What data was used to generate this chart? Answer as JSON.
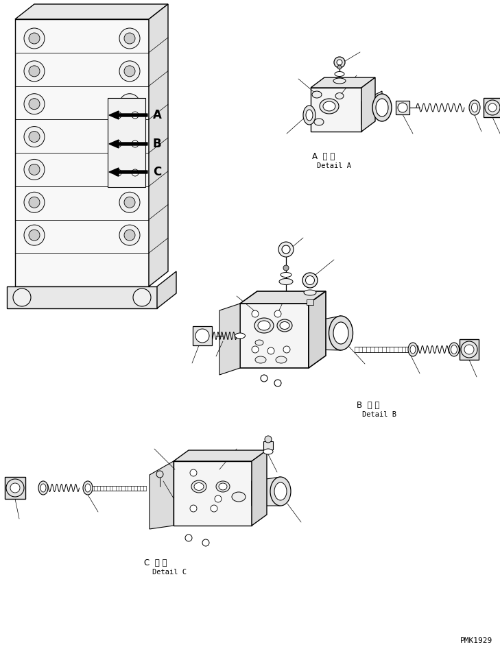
{
  "background_color": "#ffffff",
  "line_color": "#000000",
  "fig_width": 7.29,
  "fig_height": 9.5,
  "dpi": 100,
  "watermark": "PMK1929",
  "label_A_japanese": "A  詳 細",
  "label_A_english": "Detail A",
  "label_B_japanese": "B  詳 細",
  "label_B_english": "Detail B",
  "label_C_japanese": "C  詳 細",
  "label_C_english": "Detail C"
}
